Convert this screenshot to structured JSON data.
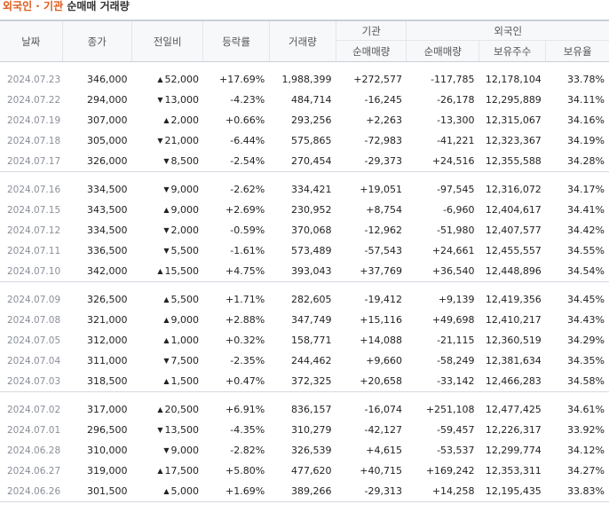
{
  "title": {
    "part1": "외국인 · 기관",
    "part2": "순매매 거래량"
  },
  "columns": {
    "date": "날짜",
    "close": "종가",
    "change": "전일비",
    "rate": "등락률",
    "volume": "거래량",
    "inst_group": "기관",
    "inst_net": "순매매량",
    "foreign_group": "외국인",
    "foreign_net": "순매매량",
    "foreign_hold": "보유주수",
    "foreign_ratio": "보유율"
  },
  "colors": {
    "up": "#d3222a",
    "down": "#1f5fbf"
  },
  "groups": [
    [
      {
        "date": "2024.07.23",
        "close": "346,000",
        "dir": "up",
        "change": "52,000",
        "rate": "+17.69%",
        "volume": "1,988,399",
        "inst": "+272,577",
        "foreign": "-117,785",
        "hold": "12,178,104",
        "ratio": "33.78%"
      },
      {
        "date": "2024.07.22",
        "close": "294,000",
        "dir": "down",
        "change": "13,000",
        "rate": "-4.23%",
        "volume": "484,714",
        "inst": "-16,245",
        "foreign": "-26,178",
        "hold": "12,295,889",
        "ratio": "34.11%"
      },
      {
        "date": "2024.07.19",
        "close": "307,000",
        "dir": "up",
        "change": "2,000",
        "rate": "+0.66%",
        "volume": "293,256",
        "inst": "+2,263",
        "foreign": "-13,300",
        "hold": "12,315,067",
        "ratio": "34.16%"
      },
      {
        "date": "2024.07.18",
        "close": "305,000",
        "dir": "down",
        "change": "21,000",
        "rate": "-6.44%",
        "volume": "575,865",
        "inst": "-72,983",
        "foreign": "-41,221",
        "hold": "12,323,367",
        "ratio": "34.19%"
      },
      {
        "date": "2024.07.17",
        "close": "326,000",
        "dir": "down",
        "change": "8,500",
        "rate": "-2.54%",
        "volume": "270,454",
        "inst": "-29,373",
        "foreign": "+24,516",
        "hold": "12,355,588",
        "ratio": "34.28%"
      }
    ],
    [
      {
        "date": "2024.07.16",
        "close": "334,500",
        "dir": "down",
        "change": "9,000",
        "rate": "-2.62%",
        "volume": "334,421",
        "inst": "+19,051",
        "foreign": "-97,545",
        "hold": "12,316,072",
        "ratio": "34.17%"
      },
      {
        "date": "2024.07.15",
        "close": "343,500",
        "dir": "up",
        "change": "9,000",
        "rate": "+2.69%",
        "volume": "230,952",
        "inst": "+8,754",
        "foreign": "-6,960",
        "hold": "12,404,617",
        "ratio": "34.41%"
      },
      {
        "date": "2024.07.12",
        "close": "334,500",
        "dir": "down",
        "change": "2,000",
        "rate": "-0.59%",
        "volume": "370,068",
        "inst": "-12,962",
        "foreign": "-51,980",
        "hold": "12,407,577",
        "ratio": "34.42%"
      },
      {
        "date": "2024.07.11",
        "close": "336,500",
        "dir": "down",
        "change": "5,500",
        "rate": "-1.61%",
        "volume": "573,489",
        "inst": "-57,543",
        "foreign": "+24,661",
        "hold": "12,455,557",
        "ratio": "34.55%"
      },
      {
        "date": "2024.07.10",
        "close": "342,000",
        "dir": "up",
        "change": "15,500",
        "rate": "+4.75%",
        "volume": "393,043",
        "inst": "+37,769",
        "foreign": "+36,540",
        "hold": "12,448,896",
        "ratio": "34.54%"
      }
    ],
    [
      {
        "date": "2024.07.09",
        "close": "326,500",
        "dir": "up",
        "change": "5,500",
        "rate": "+1.71%",
        "volume": "282,605",
        "inst": "-19,412",
        "foreign": "+9,139",
        "hold": "12,419,356",
        "ratio": "34.45%"
      },
      {
        "date": "2024.07.08",
        "close": "321,000",
        "dir": "up",
        "change": "9,000",
        "rate": "+2.88%",
        "volume": "347,749",
        "inst": "+15,116",
        "foreign": "+49,698",
        "hold": "12,410,217",
        "ratio": "34.43%"
      },
      {
        "date": "2024.07.05",
        "close": "312,000",
        "dir": "up",
        "change": "1,000",
        "rate": "+0.32%",
        "volume": "158,771",
        "inst": "+14,088",
        "foreign": "-21,115",
        "hold": "12,360,519",
        "ratio": "34.29%"
      },
      {
        "date": "2024.07.04",
        "close": "311,000",
        "dir": "down",
        "change": "7,500",
        "rate": "-2.35%",
        "volume": "244,462",
        "inst": "+9,660",
        "foreign": "-58,249",
        "hold": "12,381,634",
        "ratio": "34.35%"
      },
      {
        "date": "2024.07.03",
        "close": "318,500",
        "dir": "up",
        "change": "1,500",
        "rate": "+0.47%",
        "volume": "372,325",
        "inst": "+20,658",
        "foreign": "-33,142",
        "hold": "12,466,283",
        "ratio": "34.58%"
      }
    ],
    [
      {
        "date": "2024.07.02",
        "close": "317,000",
        "dir": "up",
        "change": "20,500",
        "rate": "+6.91%",
        "volume": "836,157",
        "inst": "-16,074",
        "foreign": "+251,108",
        "hold": "12,477,425",
        "ratio": "34.61%"
      },
      {
        "date": "2024.07.01",
        "close": "296,500",
        "dir": "down",
        "change": "13,500",
        "rate": "-4.35%",
        "volume": "310,279",
        "inst": "-42,127",
        "foreign": "-59,457",
        "hold": "12,226,317",
        "ratio": "33.92%"
      },
      {
        "date": "2024.06.28",
        "close": "310,000",
        "dir": "down",
        "change": "9,000",
        "rate": "-2.82%",
        "volume": "326,539",
        "inst": "+4,615",
        "foreign": "-53,537",
        "hold": "12,299,774",
        "ratio": "34.12%"
      },
      {
        "date": "2024.06.27",
        "close": "319,000",
        "dir": "up",
        "change": "17,500",
        "rate": "+5.80%",
        "volume": "477,620",
        "inst": "+40,715",
        "foreign": "+169,242",
        "hold": "12,353,311",
        "ratio": "34.27%"
      },
      {
        "date": "2024.06.26",
        "close": "301,500",
        "dir": "up",
        "change": "5,000",
        "rate": "+1.69%",
        "volume": "389,266",
        "inst": "-29,313",
        "foreign": "+14,258",
        "hold": "12,195,435",
        "ratio": "33.83%"
      }
    ]
  ]
}
